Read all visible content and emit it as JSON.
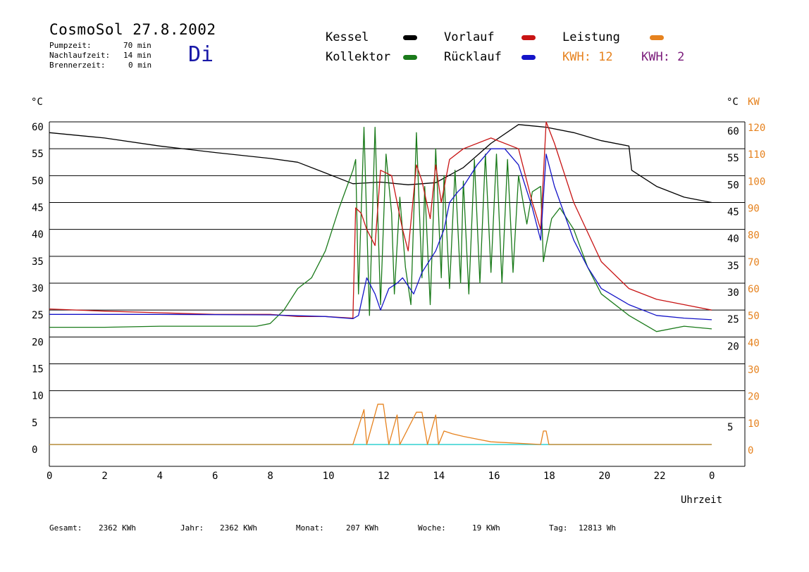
{
  "header": {
    "title": "CosmoSol 27.8.2002",
    "day": "Di",
    "rows": [
      {
        "label": "Pumpzeit:",
        "value": "70 min"
      },
      {
        "label": "Nachlaufzeit:",
        "value": "14 min"
      },
      {
        "label": "Brennerzeit:",
        "value": "0 min"
      }
    ]
  },
  "legend": {
    "kessel": "Kessel",
    "kollektor": "Kollektor",
    "vorlauf": "Vorlauf",
    "ruecklauf": "Rücklauf",
    "leistung": "Leistung",
    "kwh1": "KWH: 12",
    "kwh2": "KWH: 2"
  },
  "colors": {
    "kessel": "#000000",
    "kollektor": "#1a7a1a",
    "vorlauf": "#c81414",
    "ruecklauf": "#1414c8",
    "leistung": "#e6821e",
    "kwh2": "#7a1a7a",
    "baseline": "#30d0d0"
  },
  "footer": [
    {
      "label": "Gesamt:",
      "value": "2362 KWh"
    },
    {
      "label": "Jahr:",
      "value": "2362 KWh"
    },
    {
      "label": "Monat:",
      "value": "207 KWh"
    },
    {
      "label": "Woche:",
      "value": "19 KWh"
    },
    {
      "label": "Tag:",
      "value": "12813 Wh"
    }
  ],
  "chart_data": {
    "type": "line",
    "xlabel": "Uhrzeit",
    "ylabel_left": "°C",
    "ylabel_right_temp": "°C",
    "ylabel_right_power": "KW",
    "xlim": [
      0,
      24
    ],
    "ylim": [
      0,
      60
    ],
    "y2lim": [
      0,
      120
    ],
    "x_ticks": [
      "0",
      "2",
      "4",
      "6",
      "8",
      "10",
      "12",
      "14",
      "16",
      "18",
      "20",
      "22",
      "0"
    ],
    "y_ticks_left": [
      "0",
      "5",
      "10",
      "15",
      "20",
      "25",
      "30",
      "35",
      "40",
      "45",
      "50",
      "55",
      "60"
    ],
    "y_ticks_right_temp": [
      "5",
      "20",
      "25",
      "30",
      "35",
      "40",
      "45",
      "50",
      "55",
      "60"
    ],
    "y_ticks_right_kw": [
      "0",
      "10",
      "20",
      "30",
      "40",
      "50",
      "60",
      "70",
      "80",
      "90",
      "100",
      "110",
      "120"
    ],
    "series": [
      {
        "name": "Kessel",
        "points": [
          [
            0,
            58
          ],
          [
            2,
            57
          ],
          [
            4,
            55.5
          ],
          [
            6,
            54.3
          ],
          [
            8,
            53.2
          ],
          [
            9,
            52.5
          ],
          [
            10,
            50.5
          ],
          [
            10.5,
            49.5
          ],
          [
            11,
            48.5
          ],
          [
            12,
            48.8
          ],
          [
            13,
            48.3
          ],
          [
            14,
            48.7
          ],
          [
            15,
            51.5
          ],
          [
            16,
            56
          ],
          [
            17,
            59.5
          ],
          [
            18,
            59
          ],
          [
            19,
            58
          ],
          [
            20,
            56.5
          ],
          [
            21,
            55.5
          ],
          [
            21.1,
            51
          ],
          [
            22,
            48
          ],
          [
            23,
            46
          ],
          [
            24,
            45
          ]
        ]
      },
      {
        "name": "Kollektor",
        "points": [
          [
            0,
            21.8
          ],
          [
            2,
            21.8
          ],
          [
            4,
            22
          ],
          [
            6,
            22
          ],
          [
            7.5,
            22
          ],
          [
            8,
            22.5
          ],
          [
            8.5,
            25
          ],
          [
            9,
            29
          ],
          [
            9.5,
            31
          ],
          [
            10,
            36
          ],
          [
            10.5,
            44
          ],
          [
            11,
            51
          ],
          [
            11.1,
            53
          ],
          [
            11.2,
            28
          ],
          [
            11.4,
            59
          ],
          [
            11.6,
            24
          ],
          [
            11.8,
            59
          ],
          [
            12,
            26
          ],
          [
            12.2,
            54
          ],
          [
            12.4,
            43
          ],
          [
            12.5,
            28
          ],
          [
            12.7,
            46
          ],
          [
            12.9,
            33
          ],
          [
            13.1,
            26
          ],
          [
            13.3,
            58
          ],
          [
            13.5,
            31
          ],
          [
            13.6,
            48
          ],
          [
            13.8,
            26
          ],
          [
            14,
            55
          ],
          [
            14.2,
            31
          ],
          [
            14.3,
            50
          ],
          [
            14.5,
            29
          ],
          [
            14.7,
            51
          ],
          [
            14.9,
            30
          ],
          [
            15,
            49
          ],
          [
            15.2,
            28
          ],
          [
            15.4,
            53
          ],
          [
            15.6,
            30
          ],
          [
            15.8,
            54
          ],
          [
            16,
            32
          ],
          [
            16.2,
            54
          ],
          [
            16.4,
            30
          ],
          [
            16.6,
            53
          ],
          [
            16.8,
            32
          ],
          [
            17,
            50
          ],
          [
            17.3,
            41
          ],
          [
            17.5,
            47
          ],
          [
            17.8,
            48
          ],
          [
            17.9,
            34
          ],
          [
            18,
            37
          ],
          [
            18.2,
            42
          ],
          [
            18.5,
            44
          ],
          [
            19,
            40
          ],
          [
            19.5,
            33
          ],
          [
            20,
            28
          ],
          [
            21,
            24
          ],
          [
            22,
            21
          ],
          [
            23,
            22
          ],
          [
            24,
            21.5
          ]
        ]
      },
      {
        "name": "Vorlauf",
        "points": [
          [
            0,
            25.2
          ],
          [
            2,
            24.8
          ],
          [
            4,
            24.5
          ],
          [
            6,
            24.2
          ],
          [
            8,
            24.2
          ],
          [
            9,
            23.8
          ],
          [
            10,
            23.8
          ],
          [
            11,
            23.5
          ],
          [
            11.1,
            44
          ],
          [
            11.3,
            43
          ],
          [
            11.5,
            40
          ],
          [
            11.8,
            37
          ],
          [
            12,
            51
          ],
          [
            12.4,
            50
          ],
          [
            12.8,
            40
          ],
          [
            13,
            36
          ],
          [
            13.3,
            52
          ],
          [
            13.5,
            49
          ],
          [
            13.8,
            42
          ],
          [
            14,
            52
          ],
          [
            14.2,
            45
          ],
          [
            14.5,
            53
          ],
          [
            15,
            55
          ],
          [
            16,
            57
          ],
          [
            17,
            55
          ],
          [
            17.5,
            45
          ],
          [
            17.8,
            40
          ],
          [
            18,
            60
          ],
          [
            18.3,
            56
          ],
          [
            19,
            45
          ],
          [
            20,
            34
          ],
          [
            21,
            29
          ],
          [
            22,
            27
          ],
          [
            23,
            26
          ],
          [
            24,
            25
          ]
        ]
      },
      {
        "name": "Rücklauf",
        "points": [
          [
            0,
            24.2
          ],
          [
            4,
            24.2
          ],
          [
            8,
            24.1
          ],
          [
            10,
            23.8
          ],
          [
            11,
            23.4
          ],
          [
            11.2,
            24
          ],
          [
            11.5,
            31
          ],
          [
            11.8,
            28
          ],
          [
            12,
            25
          ],
          [
            12.3,
            29
          ],
          [
            12.6,
            30
          ],
          [
            12.8,
            31
          ],
          [
            13.2,
            28
          ],
          [
            13.5,
            32
          ],
          [
            14,
            36
          ],
          [
            14.3,
            40
          ],
          [
            14.5,
            45
          ],
          [
            14.8,
            47
          ],
          [
            15,
            48
          ],
          [
            15.5,
            52
          ],
          [
            16,
            55
          ],
          [
            16.5,
            55
          ],
          [
            17,
            52
          ],
          [
            17.5,
            44
          ],
          [
            17.8,
            38
          ],
          [
            18,
            54
          ],
          [
            18.3,
            48
          ],
          [
            19,
            38
          ],
          [
            19.5,
            33
          ],
          [
            20,
            29
          ],
          [
            21,
            26
          ],
          [
            22,
            24
          ],
          [
            23,
            23.5
          ],
          [
            24,
            23.2
          ]
        ]
      },
      {
        "name": "Leistung",
        "points": [
          [
            0,
            0
          ],
          [
            11,
            0
          ],
          [
            11.4,
            6.5
          ],
          [
            11.5,
            0
          ],
          [
            11.9,
            7.5
          ],
          [
            12.1,
            7.5
          ],
          [
            12.3,
            0
          ],
          [
            12.6,
            5.5
          ],
          [
            12.7,
            0
          ],
          [
            13.3,
            6
          ],
          [
            13.5,
            6
          ],
          [
            13.7,
            0
          ],
          [
            14,
            5.5
          ],
          [
            14.1,
            0
          ],
          [
            14.3,
            2.5
          ],
          [
            14.6,
            2
          ],
          [
            15,
            1.5
          ],
          [
            15.5,
            1
          ],
          [
            16,
            0.5
          ],
          [
            17.8,
            0
          ],
          [
            17.9,
            2.5
          ],
          [
            18,
            2.5
          ],
          [
            18.1,
            0
          ],
          [
            24,
            0
          ]
        ]
      }
    ]
  }
}
